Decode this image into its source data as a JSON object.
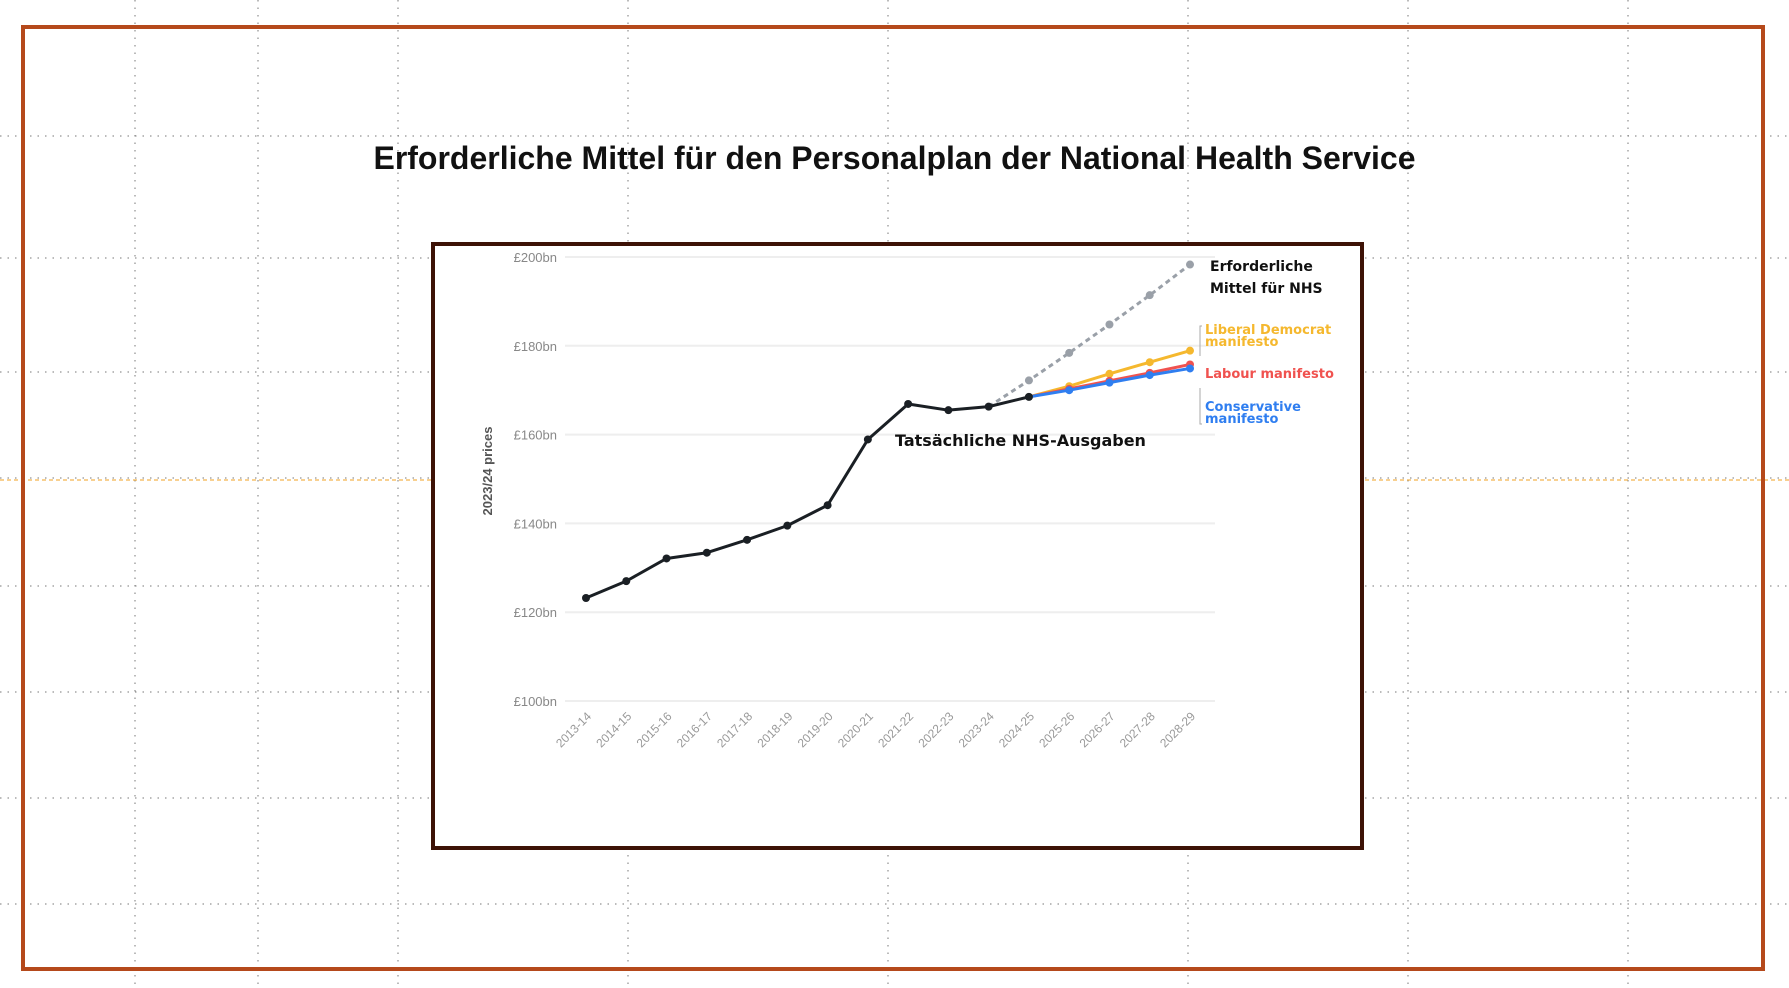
{
  "slide": {
    "title": "Erforderliche Mittel für den Personalplan der National Health Service"
  },
  "colors": {
    "frame": "#b5491b",
    "chart_border": "#3d1206",
    "actual": "#1a1f24",
    "required": "#9aa0a8",
    "libdem": "#f5b82e",
    "labour": "#f0524f",
    "conservative": "#2f7ef0",
    "guide": "#f0a020"
  },
  "chart_data": {
    "type": "line",
    "title": "",
    "xlabel": "",
    "ylabel": "2023/24 prices",
    "ylim": [
      100,
      200
    ],
    "yticks": [
      "£100bn",
      "£120bn",
      "£140bn",
      "£160bn",
      "£180bn",
      "£200bn"
    ],
    "ytick_values": [
      100,
      120,
      140,
      160,
      180,
      200
    ],
    "categories": [
      "2013-14",
      "2014-15",
      "2015-16",
      "2016-17",
      "2017-18",
      "2018-19",
      "2019-20",
      "2020-21",
      "2021-22",
      "2022-23",
      "2023-24",
      "2024-25",
      "2025-26",
      "2026-27",
      "2027-28",
      "2028-29"
    ],
    "grid": "horizontal",
    "series": [
      {
        "name": "Tatsächliche NHS-Ausgaben",
        "key": "actual",
        "style": "solid",
        "values": [
          123.2,
          127.0,
          132.1,
          133.4,
          136.3,
          139.5,
          144.1,
          158.9,
          166.9,
          165.5,
          166.3,
          168.5,
          null,
          null,
          null,
          null
        ]
      },
      {
        "name": "Erforderliche Mittel für  NHS",
        "key": "required",
        "style": "dashed",
        "values": [
          null,
          null,
          null,
          null,
          null,
          null,
          null,
          null,
          null,
          null,
          166.3,
          172.2,
          178.4,
          184.8,
          191.4,
          198.3
        ]
      },
      {
        "name": "Liberal Democrat manifesto",
        "key": "libdem",
        "style": "solid",
        "values": [
          null,
          null,
          null,
          null,
          null,
          null,
          null,
          null,
          null,
          null,
          null,
          168.5,
          170.9,
          173.7,
          176.3,
          178.9
        ]
      },
      {
        "name": "Labour manifesto",
        "key": "labour",
        "style": "solid",
        "values": [
          null,
          null,
          null,
          null,
          null,
          null,
          null,
          null,
          null,
          null,
          null,
          168.5,
          170.3,
          172.1,
          173.9,
          175.8
        ]
      },
      {
        "name": "Conservative manifesto",
        "key": "conservative",
        "style": "solid",
        "values": [
          null,
          null,
          null,
          null,
          null,
          null,
          null,
          null,
          null,
          null,
          null,
          168.5,
          170.0,
          171.7,
          173.4,
          174.9
        ]
      }
    ],
    "annotations": {
      "actual": "Tatsächliche NHS-Ausgaben",
      "required_line1": "Erforderliche",
      "required_line2": "Mittel für  NHS",
      "libdem_line1": "Liberal Democrat",
      "libdem_line2": "manifesto",
      "labour": "Labour manifesto",
      "conservative_line1": "Conservative",
      "conservative_line2": "manifesto"
    }
  }
}
